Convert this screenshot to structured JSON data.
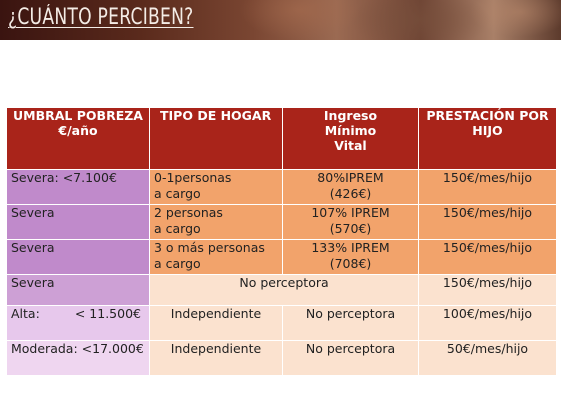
{
  "banner": {
    "title": "¿CUÁNTO PERCIBEN?"
  },
  "table": {
    "headers": {
      "col1_line1": "UMBRAL POBREZA",
      "col1_line2": "€/año",
      "col2": "TIPO DE HOGAR",
      "col3_line1": "Ingreso",
      "col3_line2": "Mínimo",
      "col3_line3": "Vital",
      "col4_line1": "PRESTACIÓN POR",
      "col4_line2": "HIJO"
    },
    "rows": [
      {
        "umbral": "Severa:  <7.100€",
        "hogar_l1": "0-1personas",
        "hogar_l2": "a cargo",
        "imv_l1": "80%IPREM",
        "imv_l2": "(426€)",
        "prestacion": "150€/mes/hijo"
      },
      {
        "umbral": "Severa",
        "hogar_l1": "2 personas",
        "hogar_l2": "a cargo",
        "imv_l1": "107% IPREM",
        "imv_l2": "(570€)",
        "prestacion": "150€/mes/hijo"
      },
      {
        "umbral": "Severa",
        "hogar_l1": "3 o más personas",
        "hogar_l2": "a cargo",
        "imv_l1": "133% IPREM",
        "imv_l2": "(708€)",
        "prestacion": "150€/mes/hijo"
      },
      {
        "umbral": "Severa",
        "merged": "No perceptora",
        "prestacion": "150€/mes/hijo"
      },
      {
        "umbral_a": "Alta:",
        "umbral_b": "< 11.500€",
        "hogar": "Independiente",
        "imv": "No perceptora",
        "prestacion": "100€/mes/hijo"
      },
      {
        "umbral": "Moderada: <17.000€",
        "hogar": "Independiente",
        "imv": "No perceptora",
        "prestacion": "50€/mes/hijo"
      }
    ]
  },
  "colors": {
    "header": "#a9241a",
    "orange": "#f2a36b",
    "peach": "#fbe2cf",
    "purple": "#c08acb"
  }
}
